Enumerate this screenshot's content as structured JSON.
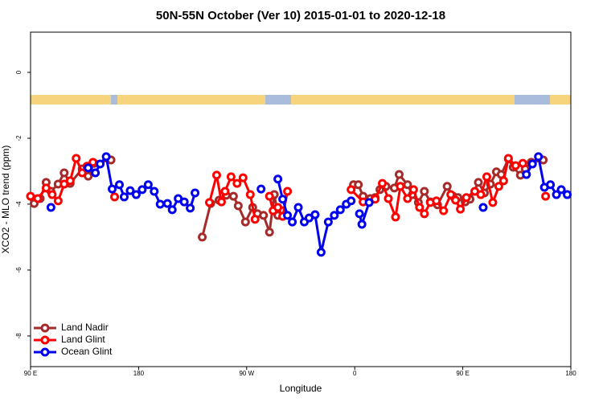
{
  "chart_data": {
    "type": "line",
    "title": "50N-55N October (Ver 10)   2015-01-01 to 2020-12-18",
    "x_label": "Longitude",
    "y_label": "XCO2 - MLO trend (ppm)",
    "xlim": [
      90,
      540
    ],
    "xticks": [
      {
        "value": 90,
        "label": "90 E"
      },
      {
        "value": 180,
        "label": "180"
      },
      {
        "value": 270,
        "label": "90 W"
      },
      {
        "value": 360,
        "label": "0"
      },
      {
        "value": 450,
        "label": "90 E"
      },
      {
        "value": 540,
        "label": "180"
      }
    ],
    "ylim": [
      -8.93,
      1.22
    ],
    "yticks": [
      0,
      -2,
      -4,
      -6,
      -8
    ],
    "legend": "bottom-left",
    "series": [
      {
        "name": "Land Nadir",
        "color": "#a52a2a",
        "x": [
          93,
          98,
          103,
          107,
          113,
          118,
          123,
          133,
          138,
          143,
          157,
          null,
          233,
          240,
          247,
          253,
          259,
          263,
          269,
          275,
          279,
          284,
          289,
          293,
          296,
          300,
          null,
          359,
          363,
          367,
          373,
          377,
          381,
          386,
          393,
          397,
          404,
          408,
          413,
          418,
          423,
          429,
          437,
          442,
          446,
          452,
          456,
          463,
          468,
          473,
          478,
          482,
          488,
          492,
          498,
          502,
          507,
          517
        ],
        "values": [
          -3.98,
          -3.83,
          -3.34,
          -3.61,
          -3.39,
          -3.05,
          -3.37,
          -2.93,
          -3.15,
          -2.76,
          -2.66,
          null,
          -5.0,
          -3.98,
          -3.88,
          -3.73,
          -3.76,
          -4.05,
          -4.54,
          -4.1,
          -4.29,
          -4.34,
          -4.85,
          -3.71,
          -4.34,
          -4.2,
          null,
          -3.41,
          -3.41,
          -3.76,
          -3.83,
          -3.8,
          -3.56,
          -3.46,
          -3.51,
          -3.1,
          -3.41,
          -3.71,
          -3.95,
          -3.61,
          -3.93,
          -4.02,
          -3.46,
          -3.76,
          -3.8,
          -3.93,
          -3.85,
          -3.34,
          -3.66,
          -3.39,
          -3.02,
          -3.1,
          -2.63,
          -2.88,
          -3.12,
          -2.93,
          -2.73,
          -2.66
        ]
      },
      {
        "name": "Land Glint",
        "color": "#ff0000",
        "x": [
          90,
          96,
          103,
          108,
          113,
          118,
          123,
          128,
          133,
          137,
          142,
          null,
          160,
          null,
          239,
          245,
          249,
          252,
          257,
          262,
          267,
          273,
          277,
          null,
          289,
          292,
          296,
          300,
          304,
          null,
          357,
          367,
          377,
          383,
          388,
          394,
          398,
          404,
          409,
          414,
          418,
          423,
          428,
          434,
          440,
          444,
          448,
          453,
          460,
          465,
          470,
          475,
          480,
          484,
          488,
          494,
          500,
          null,
          519
        ],
        "values": [
          -3.76,
          -3.83,
          -3.51,
          -3.71,
          -3.9,
          -3.39,
          -3.29,
          -2.61,
          -3.05,
          -2.85,
          -2.73,
          null,
          -3.78,
          null,
          -3.95,
          -3.12,
          -3.93,
          -3.61,
          -3.17,
          -3.37,
          -3.2,
          -3.71,
          -4.46,
          null,
          -3.76,
          -4.2,
          -4.1,
          -4.37,
          -3.61,
          null,
          -3.56,
          -3.93,
          -3.85,
          -3.37,
          -3.83,
          -4.39,
          -3.46,
          -3.83,
          -3.56,
          -4.1,
          -4.29,
          -3.95,
          -3.9,
          -4.2,
          -3.71,
          -3.88,
          -4.15,
          -3.8,
          -3.61,
          -3.71,
          -3.17,
          -3.95,
          -3.46,
          -3.29,
          -2.61,
          -2.83,
          -2.76,
          null,
          -3.76
        ]
      },
      {
        "name": "Ocean Glint",
        "color": "#0000ee",
        "x": [
          107,
          null,
          138,
          144,
          148,
          153,
          158,
          164,
          168,
          173,
          178,
          183,
          188,
          193,
          198,
          204,
          208,
          213,
          218,
          223,
          227,
          null,
          282,
          null,
          296,
          300,
          304,
          308,
          313,
          318,
          322,
          327,
          332,
          338,
          343,
          348,
          353,
          357,
          null,
          364,
          366,
          372,
          null,
          467,
          null,
          503,
          508,
          513,
          518,
          523,
          528,
          532,
          537
        ],
        "values": [
          -4.1,
          null,
          -2.9,
          -3.05,
          -2.78,
          -2.56,
          -3.54,
          -3.41,
          -3.78,
          -3.59,
          -3.71,
          -3.56,
          -3.41,
          -3.61,
          -4.0,
          -3.98,
          -4.17,
          -3.83,
          -3.93,
          -4.12,
          -3.66,
          null,
          -3.54,
          null,
          -3.24,
          -3.85,
          -4.34,
          -4.54,
          -4.1,
          -4.54,
          -4.42,
          -4.32,
          -5.46,
          -4.54,
          -4.34,
          -4.17,
          -4.0,
          -3.9,
          null,
          -4.29,
          -4.61,
          -3.95,
          null,
          -4.1,
          null,
          -3.1,
          -2.78,
          -2.56,
          -3.49,
          -3.41,
          -3.71,
          -3.56,
          -3.71
        ]
      }
    ]
  }
}
